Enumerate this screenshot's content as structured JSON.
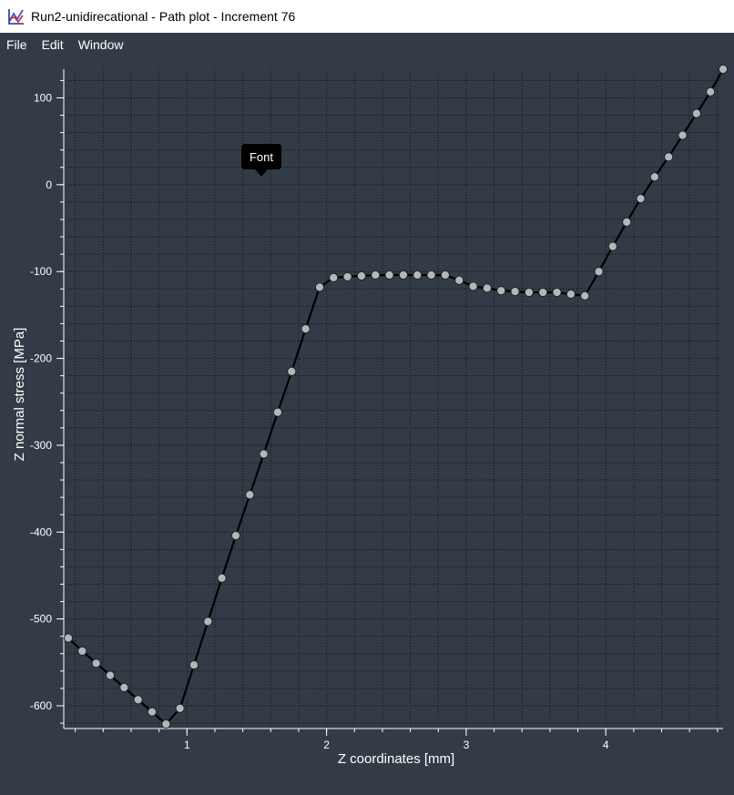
{
  "window": {
    "title": "Run2-unidirecational - Path plot - Increment 76"
  },
  "menu": {
    "items": [
      "File",
      "Edit",
      "Window"
    ]
  },
  "icons": {
    "app": "line-chart-icon"
  },
  "colors": {
    "background": "#333c46",
    "line": "#000000",
    "marker": "#b4b6b9",
    "grid": "#0b0f14",
    "axis_text": "#ffffff"
  },
  "tooltip": {
    "text": "Font"
  },
  "chart_data": {
    "type": "line",
    "title": "",
    "xlabel": "Z coordinates [mm]",
    "ylabel": "Z normal stress [MPa]",
    "xlim": [
      0.15,
      4.84
    ],
    "ylim": [
      -622,
      133
    ],
    "xticks": [
      1,
      2,
      3,
      4
    ],
    "yticks": [
      100,
      0,
      -100,
      -200,
      -300,
      -400,
      -500,
      -600
    ],
    "grid": true,
    "marker": "circle",
    "series": [
      {
        "x": [
          0.15,
          0.25,
          0.35,
          0.45,
          0.55,
          0.65,
          0.75,
          0.85,
          0.95,
          1.05,
          1.15,
          1.25,
          1.35,
          1.45,
          1.55,
          1.65,
          1.75,
          1.85,
          1.95,
          2.05,
          2.15,
          2.25,
          2.35,
          2.45,
          2.55,
          2.65,
          2.75,
          2.85,
          2.95,
          3.05,
          3.15,
          3.25,
          3.35,
          3.45,
          3.55,
          3.65,
          3.75,
          3.85,
          3.95,
          4.05,
          4.15,
          4.25,
          4.35,
          4.45,
          4.55,
          4.65,
          4.75,
          4.84
        ],
        "y": [
          -522,
          -537,
          -551,
          -565,
          -579,
          -593,
          -607,
          -621,
          -603,
          -553,
          -503,
          -453,
          -404,
          -357,
          -310,
          -262,
          -215,
          -166,
          -118,
          -107,
          -106,
          -105,
          -104,
          -104,
          -104,
          -104,
          -104,
          -104,
          -110,
          -117,
          -119,
          -122,
          -123,
          -124,
          -124,
          -124,
          -126,
          -128,
          -100,
          -71,
          -43,
          -16,
          9,
          32,
          57,
          82,
          107,
          133
        ]
      }
    ]
  }
}
